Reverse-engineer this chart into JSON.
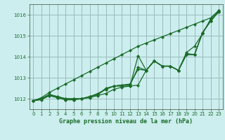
{
  "title": "Graphe pression niveau de la mer (hPa)",
  "bg_color": "#cceeee",
  "grid_color": "#99bbbb",
  "line_color": "#1a6b2a",
  "text_color": "#1a6b2a",
  "xlim": [
    -0.5,
    23.5
  ],
  "ylim": [
    1011.5,
    1016.5
  ],
  "yticks": [
    1012,
    1013,
    1014,
    1015,
    1016
  ],
  "xticks": [
    0,
    1,
    2,
    3,
    4,
    5,
    6,
    7,
    8,
    9,
    10,
    11,
    12,
    13,
    14,
    15,
    16,
    17,
    18,
    19,
    20,
    21,
    22,
    23
  ],
  "series": [
    [
      1011.9,
      1011.95,
      1012.15,
      1012.05,
      1011.95,
      1011.95,
      1012.0,
      1012.05,
      1012.15,
      1012.25,
      1012.45,
      1012.55,
      1012.6,
      1012.65,
      1013.35,
      1013.8,
      1013.55,
      1013.55,
      1013.35,
      1014.1,
      1014.1,
      1015.15,
      1015.7,
      1016.15
    ],
    [
      1011.9,
      1012.0,
      1012.15,
      1012.05,
      1011.95,
      1011.95,
      1012.0,
      1012.1,
      1012.2,
      1012.45,
      1012.6,
      1012.65,
      1012.7,
      1013.4,
      1013.35,
      1013.8,
      1013.55,
      1013.55,
      1013.35,
      1014.1,
      1014.1,
      1015.15,
      1015.7,
      1016.15
    ],
    [
      1011.9,
      1012.0,
      1012.2,
      1012.1,
      1012.0,
      1012.0,
      1012.0,
      1012.1,
      1012.25,
      1012.45,
      1012.6,
      1012.65,
      1012.65,
      1013.5,
      1013.35,
      1013.8,
      1013.55,
      1013.55,
      1013.35,
      1014.15,
      1014.1,
      1015.15,
      1015.7,
      1016.15
    ],
    [
      1011.9,
      1012.0,
      1012.2,
      1012.1,
      1012.0,
      1012.0,
      1012.0,
      1012.1,
      1012.2,
      1012.5,
      1012.6,
      1012.6,
      1012.6,
      1014.05,
      1013.35,
      1013.8,
      1013.55,
      1013.55,
      1013.35,
      1014.2,
      1014.5,
      1015.1,
      1015.8,
      1016.2
    ],
    [
      1011.9,
      1012.05,
      1012.3,
      1012.5,
      1012.7,
      1012.9,
      1013.1,
      1013.3,
      1013.5,
      1013.7,
      1013.9,
      1014.1,
      1014.3,
      1014.5,
      1014.65,
      1014.8,
      1014.95,
      1015.1,
      1015.25,
      1015.4,
      1015.55,
      1015.7,
      1015.85,
      1016.2
    ]
  ]
}
